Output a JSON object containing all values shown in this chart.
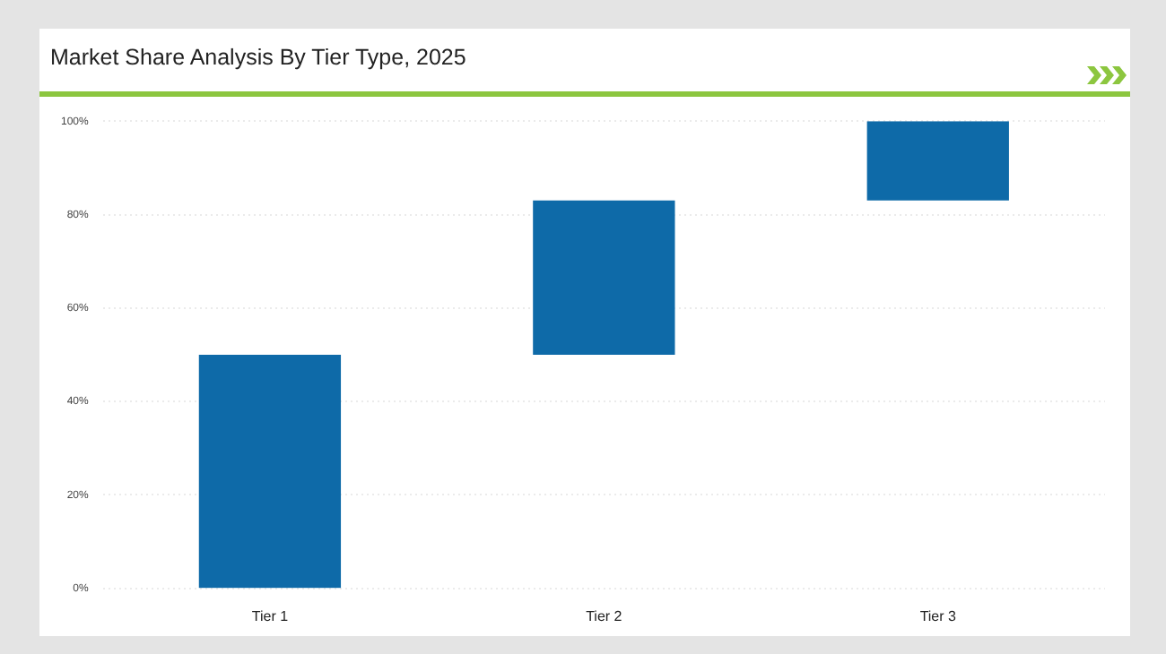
{
  "chart_data": {
    "type": "bar",
    "title": "Market Share Analysis By Tier Type, 2025",
    "categories": [
      "Tier 1",
      "Tier 2",
      "Tier 3"
    ],
    "values": [
      50,
      33,
      17
    ],
    "base": [
      0,
      50,
      83
    ],
    "color": "#0e6aa8",
    "ylim": [
      0,
      100
    ],
    "yticks": [
      {
        "value": 0,
        "label": "0%"
      },
      {
        "value": 20,
        "label": "20%"
      },
      {
        "value": 40,
        "label": "40%"
      },
      {
        "value": 60,
        "label": "60%"
      },
      {
        "value": 80,
        "label": "80%"
      },
      {
        "value": 100,
        "label": "100%"
      }
    ],
    "grid": "y",
    "legend": false
  }
}
